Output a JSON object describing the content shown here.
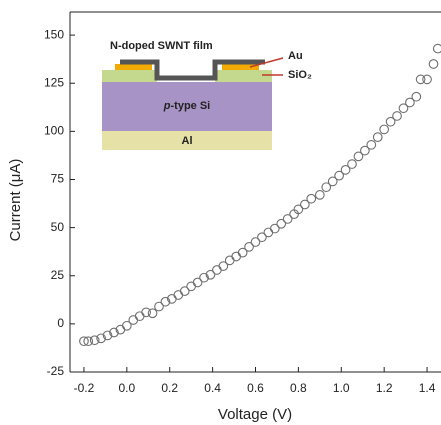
{
  "chart_data": {
    "type": "scatter",
    "x_label": "Voltage (V)",
    "y_label": "Current (μA)",
    "x": [
      -0.2,
      -0.18,
      -0.15,
      -0.12,
      -0.09,
      -0.06,
      -0.03,
      0.0,
      0.03,
      0.06,
      0.09,
      0.12,
      0.15,
      0.18,
      0.21,
      0.24,
      0.27,
      0.3,
      0.33,
      0.36,
      0.39,
      0.42,
      0.45,
      0.48,
      0.51,
      0.54,
      0.57,
      0.6,
      0.63,
      0.66,
      0.69,
      0.72,
      0.75,
      0.78,
      0.8,
      0.83,
      0.86,
      0.9,
      0.93,
      0.96,
      0.99,
      1.02,
      1.05,
      1.08,
      1.11,
      1.14,
      1.17,
      1.2,
      1.23,
      1.26,
      1.29,
      1.32,
      1.35,
      1.37,
      1.4,
      1.43,
      1.45
    ],
    "y": [
      -9,
      -9,
      -8.5,
      -7.5,
      -6,
      -4.5,
      -3,
      -1,
      2,
      4,
      6,
      5.5,
      9,
      11.5,
      13,
      15,
      17,
      19.5,
      21.5,
      24,
      25.5,
      28,
      30,
      33,
      35,
      37,
      40,
      42.5,
      45,
      47.5,
      49.5,
      52,
      54.5,
      57,
      59.5,
      62,
      65,
      67,
      71,
      74,
      77,
      80,
      83,
      87,
      90,
      93,
      97,
      101,
      105,
      108,
      112,
      115,
      118,
      127,
      127,
      135,
      143
    ],
    "marker_color": "#6e6e6e",
    "xlim": [
      -0.265,
      1.465
    ],
    "ylim": [
      -25,
      162
    ],
    "xticks": [
      {
        "value": -0.2,
        "label": "-0.2"
      },
      {
        "value": 0,
        "label": "0.0"
      },
      {
        "value": 0.2,
        "label": "0.2"
      },
      {
        "value": 0.4,
        "label": "0.4"
      },
      {
        "value": 0.6,
        "label": "0.6"
      },
      {
        "value": 0.8,
        "label": "0.8"
      },
      {
        "value": 1,
        "label": "1.0"
      },
      {
        "value": 1.2,
        "label": "1.2"
      },
      {
        "value": 1.4,
        "label": "1.4"
      }
    ],
    "yticks": [
      -25,
      0,
      25,
      50,
      75,
      100,
      125,
      150
    ]
  },
  "inset": {
    "film": "N-doped SWNT film",
    "au": "Au",
    "sio2": "SiO₂",
    "si_italic": "p",
    "si_rest": "-type Si",
    "al": "Al"
  }
}
